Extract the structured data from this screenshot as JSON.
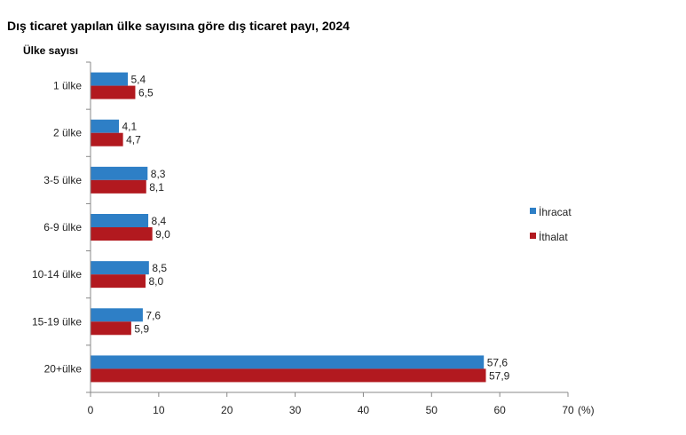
{
  "chart_data": {
    "type": "bar",
    "orientation": "horizontal",
    "title": "Dış ticaret yapılan ülke sayısına göre dış ticaret payı, 2024",
    "ylabel": "Ülke sayısı",
    "xunit": "(%)",
    "categories": [
      "1 ülke",
      "2 ülke",
      "3-5 ülke",
      "6-9 ülke",
      "10-14 ülke",
      "15-19 ülke",
      "20+ülke"
    ],
    "series": [
      {
        "name": "İhracat",
        "color": "#2e7fc6",
        "values": [
          5.4,
          4.1,
          8.3,
          8.4,
          8.5,
          7.6,
          57.6
        ],
        "labels": [
          "5,4",
          "4,1",
          "8,3",
          "8,4",
          "8,5",
          "7,6",
          "57,6"
        ]
      },
      {
        "name": "İthalat",
        "color": "#b2191f",
        "values": [
          6.5,
          4.7,
          8.1,
          9.0,
          8.0,
          5.9,
          57.9
        ],
        "labels": [
          "6,5",
          "4,7",
          "8,1",
          "9,0",
          "8,0",
          "5,9",
          "57,9"
        ]
      }
    ],
    "xlim": [
      0,
      70
    ],
    "xticks": [
      "0",
      "10",
      "20",
      "30",
      "40",
      "50",
      "60",
      "70"
    ],
    "grid": false,
    "legend": "right"
  }
}
